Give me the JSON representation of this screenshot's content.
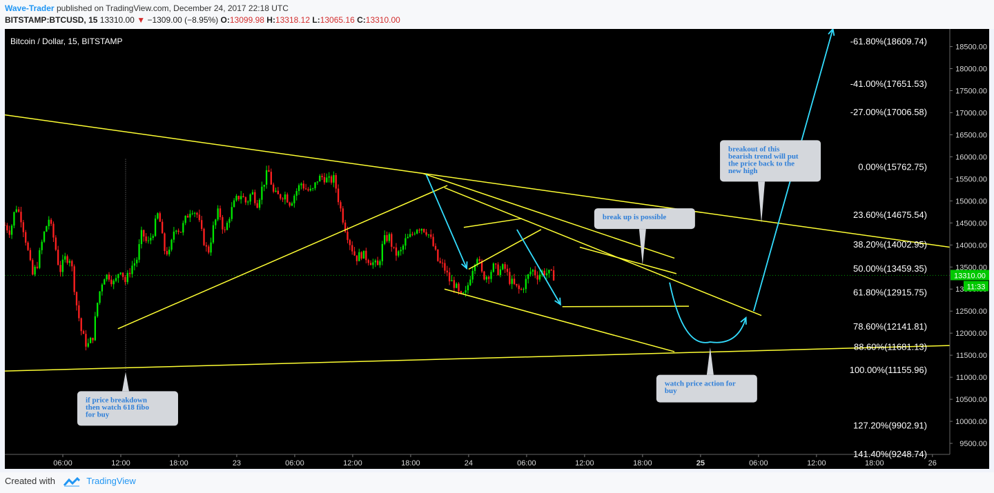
{
  "header": {
    "author": "Wave-Trader",
    "published_text": "published on TradingView.com, December 24, 2017 22:18 UTC",
    "symbol": "BITSTAMP:BTCUSD, 15",
    "last": "13310.00",
    "change": "−1309.00 (−8.95%)",
    "open_label": "O:",
    "open": "13099.98",
    "high_label": "H:",
    "high": "13318.12",
    "low_label": "L:",
    "low": "13065.16",
    "close_label": "C:",
    "close": "13310.00"
  },
  "footer": {
    "created_with": "Created with",
    "brand": "TradingView"
  },
  "colors": {
    "up": "#00e600",
    "down": "#ff2020",
    "trendline": "#ffff33",
    "arrow": "#33ddff",
    "axis_text": "#d8d8d8",
    "price_tag": "#00c800"
  },
  "chart_data": {
    "type": "candlestick",
    "title": "Bitcoin / Dollar, 15, BITSTAMP",
    "ylim": [
      9250,
      18900
    ],
    "x_ticks": [
      "06:00",
      "12:00",
      "18:00",
      "23",
      "06:00",
      "12:00",
      "18:00",
      "24",
      "06:00",
      "12:00",
      "18:00",
      "25",
      "06:00",
      "12:00",
      "18:00",
      "26"
    ],
    "x_tick_hours": [
      6,
      12,
      18,
      24,
      30,
      36,
      42,
      48,
      54,
      60,
      66,
      72,
      78,
      84,
      90,
      96
    ],
    "xlim_hours": [
      0,
      97.8
    ],
    "y_ticks": [
      9500,
      10000,
      10500,
      11000,
      11500,
      12000,
      12500,
      13000,
      13500,
      14000,
      14500,
      15000,
      15500,
      16000,
      16500,
      17000,
      17500,
      18000,
      18500
    ],
    "y_tick_labels": [
      "9500.00",
      "10000.00",
      "10500.00",
      "11000.00",
      "11500.00",
      "12000.00",
      "12500.00",
      "13000.00",
      "13500.00",
      "14000.00",
      "14500.00",
      "15000.00",
      "15500.00",
      "16000.00",
      "16500.00",
      "17000.00",
      "17500.00",
      "18000.00",
      "18500.00"
    ],
    "fib_levels": [
      {
        "label": "-61.80%(18609.74)",
        "price": 18609.74
      },
      {
        "label": "-41.00%(17651.53)",
        "price": 17651.53
      },
      {
        "label": "-27.00%(17006.58)",
        "price": 17006.58
      },
      {
        "label": "0.00%(15762.75)",
        "price": 15762.75
      },
      {
        "label": "23.60%(14675.54)",
        "price": 14675.54
      },
      {
        "label": "38.20%(14002.95)",
        "price": 14002.95
      },
      {
        "label": "50.00%(13459.35)",
        "price": 13459.35
      },
      {
        "label": "61.80%(12915.75)",
        "price": 12915.75
      },
      {
        "label": "78.60%(12141.81)",
        "price": 12141.81
      },
      {
        "label": "88.60%(11681.13)",
        "price": 11681.13
      },
      {
        "label": "100.00%(11155.96)",
        "price": 11155.96
      },
      {
        "label": "127.20%(9902.91)",
        "price": 9902.91
      },
      {
        "label": "141.40%(9248.74)",
        "price": 9248.74
      }
    ],
    "current_price": 13310,
    "current_price_label": "13310.00",
    "countdown_label": "11:33",
    "close_path": [
      [
        0,
        14450
      ],
      [
        1,
        14300
      ],
      [
        2,
        14900
      ],
      [
        3,
        14600
      ],
      [
        4,
        14000
      ],
      [
        5,
        13300
      ],
      [
        6,
        13600
      ],
      [
        7,
        14200
      ],
      [
        8,
        14600
      ],
      [
        9,
        14100
      ],
      [
        10,
        13400
      ],
      [
        11,
        13700
      ],
      [
        12,
        13700
      ],
      [
        13,
        12700
      ],
      [
        14,
        12000
      ],
      [
        15,
        11700
      ],
      [
        16,
        11900
      ],
      [
        17,
        12800
      ],
      [
        18,
        13300
      ],
      [
        19,
        13300
      ],
      [
        20,
        13100
      ],
      [
        21,
        13500
      ],
      [
        22,
        13150
      ],
      [
        23,
        13500
      ],
      [
        24,
        13650
      ],
      [
        25,
        14300
      ],
      [
        26,
        14000
      ],
      [
        27,
        14300
      ],
      [
        28,
        14750
      ],
      [
        29,
        13900
      ],
      [
        30,
        13800
      ],
      [
        31,
        14450
      ],
      [
        32,
        14300
      ],
      [
        33,
        14600
      ],
      [
        34,
        14850
      ],
      [
        35,
        14700
      ],
      [
        36,
        14200
      ],
      [
        37,
        13800
      ],
      [
        38,
        14400
      ],
      [
        39,
        14800
      ],
      [
        40,
        14250
      ],
      [
        41,
        14700
      ],
      [
        42,
        15000
      ],
      [
        43,
        15150
      ],
      [
        44,
        14950
      ],
      [
        45,
        15200
      ],
      [
        46,
        14950
      ],
      [
        47,
        15350
      ],
      [
        48,
        15700
      ],
      [
        49,
        15150
      ],
      [
        50,
        15100
      ],
      [
        51,
        15150
      ],
      [
        52,
        14950
      ],
      [
        53,
        15200
      ],
      [
        54,
        15400
      ],
      [
        55,
        15250
      ],
      [
        56,
        15200
      ],
      [
        57,
        15500
      ],
      [
        58,
        15550
      ],
      [
        59,
        15450
      ],
      [
        60,
        15500
      ],
      [
        61,
        14900
      ],
      [
        62,
        14400
      ],
      [
        63,
        14000
      ],
      [
        64,
        13700
      ],
      [
        65,
        13800
      ],
      [
        66,
        13700
      ],
      [
        67,
        13600
      ],
      [
        68,
        13500
      ],
      [
        69,
        14100
      ],
      [
        70,
        14200
      ],
      [
        71,
        13800
      ],
      [
        72,
        13800
      ],
      [
        73,
        14100
      ],
      [
        74,
        14200
      ],
      [
        75,
        14400
      ],
      [
        76,
        14400
      ],
      [
        77,
        14300
      ],
      [
        78,
        14000
      ],
      [
        79,
        13600
      ],
      [
        80,
        13500
      ],
      [
        81,
        13200
      ],
      [
        82,
        13100
      ],
      [
        83,
        12800
      ],
      [
        84,
        12900
      ],
      [
        85,
        13400
      ],
      [
        86,
        13800
      ],
      [
        87,
        13300
      ],
      [
        88,
        13300
      ],
      [
        89,
        13500
      ],
      [
        90,
        13400
      ],
      [
        91,
        13500
      ],
      [
        92,
        13200
      ],
      [
        93,
        13050
      ],
      [
        94,
        12950
      ],
      [
        95,
        13200
      ],
      [
        96,
        13450
      ],
      [
        97,
        13300
      ],
      [
        98,
        13400
      ],
      [
        99,
        13350
      ],
      [
        100,
        13300
      ]
    ],
    "candles_hours": [
      0,
      56.8
    ],
    "trendlines": [
      {
        "from": [
          0,
          16950
        ],
        "to": [
          97.8,
          13950
        ]
      },
      {
        "from": [
          0,
          11140
        ],
        "to": [
          97.8,
          11720
        ]
      },
      {
        "from": [
          11.7,
          12100
        ],
        "to": [
          45.8,
          15350
        ]
      },
      {
        "from": [
          43.3,
          15620
        ],
        "to": [
          69.3,
          13700
        ]
      },
      {
        "from": [
          45.5,
          15300
        ],
        "to": [
          78.3,
          12400
        ]
      },
      {
        "from": [
          45.5,
          13000
        ],
        "to": [
          69.3,
          11580
        ]
      },
      {
        "from": [
          47.5,
          14400
        ],
        "to": [
          53.5,
          14600
        ]
      },
      {
        "from": [
          48.0,
          13450
        ],
        "to": [
          55.5,
          14350
        ]
      },
      {
        "from": [
          57.7,
          12600
        ],
        "to": [
          70.8,
          12610
        ]
      },
      {
        "from": [
          59.5,
          13950
        ],
        "to": [
          69.5,
          13350
        ]
      }
    ],
    "arrows": [
      {
        "points": [
          [
            43.6,
            15600
          ],
          [
            47.8,
            13470
          ]
        ]
      },
      {
        "points": [
          [
            53.0,
            14350
          ],
          [
            57.5,
            12650
          ]
        ]
      },
      {
        "points": [
          [
            68.8,
            13150
          ],
          [
            73.0,
            11800
          ],
          [
            76.7,
            12350
          ]
        ],
        "smooth": true
      },
      {
        "points": [
          [
            77.5,
            12500
          ],
          [
            85.7,
            18900
          ]
        ]
      }
    ],
    "annotations": [
      {
        "text": "breakout of this bearish trend will put the price back to the new high",
        "lines": [
          "breakout of this",
          "bearish trend will put",
          "the price back to the",
          "new high"
        ],
        "anchor": [
          78.3,
          14500
        ]
      },
      {
        "text": "break up is possible",
        "lines": [
          "break up is possible"
        ],
        "anchor": [
          66.0,
          13550
        ]
      },
      {
        "text": "watch price action for buy",
        "lines": [
          "watch price action for",
          "buy"
        ],
        "anchor": [
          73.0,
          11680
        ]
      },
      {
        "text": "if price breakdown then watch 618 fibo for buy",
        "lines": [
          "if price breakdown",
          "then watch 618 fibo",
          "for buy"
        ],
        "anchor": [
          12.5,
          11120
        ]
      }
    ]
  }
}
